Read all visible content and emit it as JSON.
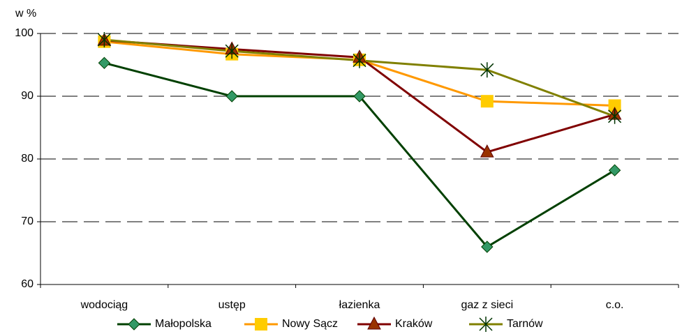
{
  "chart_data": {
    "type": "line",
    "y_label": "w %",
    "categories": [
      "wodociąg",
      "ustęp",
      "łazienka",
      "gaz z sieci",
      "c.o."
    ],
    "series": [
      {
        "name": "Małopolska",
        "color": "#004000",
        "marker": "diamond",
        "marker_color": "#339966",
        "values": [
          95.3,
          90,
          90,
          66,
          78.2
        ]
      },
      {
        "name": "Nowy Sącz",
        "color": "#ff9900",
        "marker": "square",
        "marker_color": "#ffcc00",
        "values": [
          98.7,
          96.7,
          95.8,
          89.2,
          88.5
        ]
      },
      {
        "name": "Kraków",
        "color": "#800000",
        "marker": "triangle",
        "marker_color": "#993300",
        "values": [
          98.9,
          97.5,
          96.2,
          81.1,
          87.1
        ]
      },
      {
        "name": "Tarnów",
        "color": "#808000",
        "marker": "star",
        "marker_color": "#003300",
        "values": [
          99,
          97.2,
          95.7,
          94.2,
          86.8
        ]
      }
    ],
    "ylim": [
      60,
      100
    ],
    "yticks": [
      60,
      70,
      80,
      90,
      100
    ],
    "grid": true,
    "legend": "bottom"
  }
}
